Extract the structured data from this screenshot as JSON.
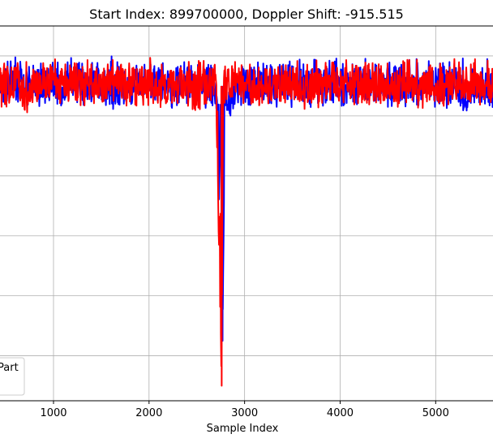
{
  "chart_data": {
    "type": "line",
    "title": "Start Index: 899700000, Doppler Shift: -915.515",
    "xlabel": "Sample Index",
    "ylabel": "",
    "x_ticks": [
      1000,
      2000,
      3000,
      4000,
      5000
    ],
    "xlim": [
      440,
      5600
    ],
    "ylim": [
      -1.05,
      0.2
    ],
    "grid": true,
    "legend": {
      "placement": "lower-left",
      "visible_text": [
        "Part"
      ]
    },
    "series": [
      {
        "color": "#0000ff",
        "x": [
          440,
          600,
          800,
          1000,
          1200,
          1400,
          1600,
          1800,
          2000,
          2200,
          2400,
          2600,
          2700,
          2770,
          2780,
          2790,
          2850,
          2900,
          3000,
          3200,
          3400,
          3500,
          3600,
          3800,
          4000,
          4200,
          4400,
          4600,
          4800,
          5000,
          5200,
          5280,
          5400,
          5600
        ],
        "y_mid": [
          0.0,
          0.01,
          -0.01,
          0.0,
          0.02,
          0.0,
          -0.01,
          0.01,
          0.0,
          0.0,
          0.01,
          -0.01,
          0.0,
          -0.45,
          -0.6,
          -0.05,
          -0.07,
          0.0,
          0.0,
          0.01,
          0.0,
          0.0,
          0.0,
          0.01,
          0.0,
          0.02,
          0.0,
          -0.01,
          0.0,
          0.01,
          0.0,
          -0.05,
          0.0,
          0.0
        ],
        "y_max": [
          0.1,
          0.1,
          0.1,
          0.1,
          0.1,
          0.1,
          0.1,
          0.1,
          0.1,
          0.1,
          0.1,
          0.1,
          0.1,
          0.0,
          -0.3,
          0.1,
          0.05,
          0.1,
          0.1,
          0.1,
          0.1,
          0.12,
          0.1,
          0.1,
          0.1,
          0.1,
          0.1,
          0.1,
          0.1,
          0.1,
          0.1,
          0.1,
          0.1,
          0.1
        ],
        "y_min": [
          -0.08,
          -0.08,
          -0.08,
          -0.08,
          -0.08,
          -0.08,
          -0.08,
          -0.08,
          -0.08,
          -0.08,
          -0.08,
          -0.08,
          -0.08,
          -0.85,
          -0.82,
          -0.12,
          -0.12,
          -0.08,
          -0.08,
          -0.08,
          -0.08,
          -0.08,
          -0.08,
          -0.08,
          -0.08,
          -0.08,
          -0.08,
          -0.08,
          -0.08,
          -0.08,
          -0.08,
          -0.1,
          -0.08,
          -0.08
        ]
      },
      {
        "color": "#ff0000",
        "x": [
          440,
          600,
          740,
          800,
          1000,
          1200,
          1400,
          1600,
          1800,
          2000,
          2200,
          2400,
          2520,
          2600,
          2700,
          2760,
          2770,
          2780,
          2800,
          3000,
          3200,
          3400,
          3600,
          3800,
          4000,
          4200,
          4400,
          4600,
          4800,
          5000,
          5200,
          5400,
          5600
        ],
        "y_mid": [
          0.0,
          0.0,
          -0.02,
          0.0,
          0.01,
          0.0,
          0.0,
          0.01,
          0.0,
          0.0,
          0.0,
          0.01,
          0.0,
          0.0,
          0.0,
          -0.95,
          -0.3,
          -0.02,
          0.0,
          0.0,
          0.0,
          0.01,
          0.0,
          0.0,
          0.0,
          0.0,
          0.0,
          0.0,
          0.0,
          0.0,
          0.0,
          0.0,
          0.0
        ],
        "y_max": [
          0.1,
          0.1,
          0.1,
          0.1,
          0.1,
          0.1,
          0.1,
          0.1,
          0.1,
          0.1,
          0.1,
          0.1,
          0.1,
          0.1,
          0.1,
          0.05,
          0.05,
          0.1,
          0.1,
          0.1,
          0.1,
          0.1,
          0.13,
          0.1,
          0.1,
          0.1,
          0.1,
          0.1,
          0.1,
          0.1,
          0.1,
          0.1,
          0.1
        ],
        "y_min": [
          -0.08,
          -0.08,
          -0.1,
          -0.08,
          -0.08,
          -0.08,
          -0.08,
          -0.08,
          -0.08,
          -0.08,
          -0.08,
          -0.08,
          -0.13,
          -0.08,
          -0.08,
          -1.0,
          -0.3,
          -0.08,
          -0.08,
          -0.08,
          -0.08,
          -0.08,
          -0.08,
          -0.08,
          -0.08,
          -0.08,
          -0.08,
          -0.08,
          -0.08,
          -0.08,
          -0.08,
          -0.08,
          -0.08
        ]
      }
    ]
  }
}
